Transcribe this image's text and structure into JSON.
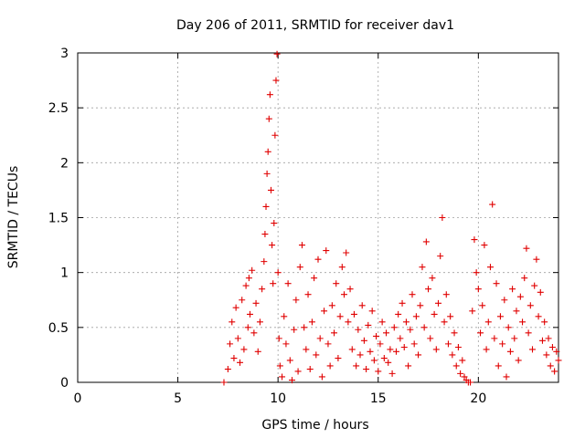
{
  "chart_data": {
    "type": "scatter",
    "title": "Day 206 of 2011, SRMTID for receiver dav1",
    "xlabel": "GPS time / hours",
    "ylabel": "SRMTID / TECUs",
    "xlim": [
      0,
      24
    ],
    "ylim": [
      0,
      3
    ],
    "xticks": [
      0,
      5,
      10,
      15,
      20
    ],
    "xtick_labels": [
      "0",
      "5",
      "10",
      "15",
      "20"
    ],
    "yticks": [
      0,
      0.5,
      1,
      1.5,
      2,
      2.5,
      3
    ],
    "ytick_labels": [
      "0",
      "0.5",
      "1",
      "1.5",
      "2",
      "2.5",
      "3"
    ],
    "grid": true,
    "marker": "plus",
    "color": "#e00000",
    "points": [
      [
        7.3,
        0.0
      ],
      [
        7.5,
        0.12
      ],
      [
        7.6,
        0.35
      ],
      [
        7.7,
        0.55
      ],
      [
        7.8,
        0.22
      ],
      [
        7.9,
        0.68
      ],
      [
        8.0,
        0.4
      ],
      [
        8.1,
        0.18
      ],
      [
        8.2,
        0.75
      ],
      [
        8.3,
        0.3
      ],
      [
        8.4,
        0.88
      ],
      [
        8.5,
        0.5
      ],
      [
        8.55,
        0.95
      ],
      [
        8.6,
        0.62
      ],
      [
        8.7,
        1.02
      ],
      [
        8.8,
        0.45
      ],
      [
        8.9,
        0.72
      ],
      [
        9.0,
        0.28
      ],
      [
        9.1,
        0.55
      ],
      [
        9.2,
        0.85
      ],
      [
        9.3,
        1.1
      ],
      [
        9.35,
        1.35
      ],
      [
        9.4,
        1.6
      ],
      [
        9.45,
        1.9
      ],
      [
        9.5,
        2.1
      ],
      [
        9.55,
        2.4
      ],
      [
        9.6,
        2.62
      ],
      [
        9.65,
        1.75
      ],
      [
        9.7,
        1.25
      ],
      [
        9.75,
        0.9
      ],
      [
        9.8,
        1.45
      ],
      [
        9.85,
        2.25
      ],
      [
        9.9,
        2.75
      ],
      [
        9.95,
        2.99
      ],
      [
        10.0,
        1.0
      ],
      [
        10.05,
        0.4
      ],
      [
        10.1,
        0.15
      ],
      [
        10.2,
        0.05
      ],
      [
        10.3,
        0.6
      ],
      [
        10.4,
        0.35
      ],
      [
        10.5,
        0.9
      ],
      [
        10.6,
        0.2
      ],
      [
        10.7,
        0.02
      ],
      [
        10.8,
        0.48
      ],
      [
        10.9,
        0.75
      ],
      [
        11.0,
        0.1
      ],
      [
        11.1,
        1.05
      ],
      [
        11.2,
        1.25
      ],
      [
        11.3,
        0.5
      ],
      [
        11.4,
        0.3
      ],
      [
        11.5,
        0.8
      ],
      [
        11.6,
        0.12
      ],
      [
        11.7,
        0.55
      ],
      [
        11.8,
        0.95
      ],
      [
        11.9,
        0.25
      ],
      [
        12.0,
        1.12
      ],
      [
        12.1,
        0.4
      ],
      [
        12.2,
        0.05
      ],
      [
        12.3,
        0.65
      ],
      [
        12.4,
        1.2
      ],
      [
        12.5,
        0.35
      ],
      [
        12.6,
        0.15
      ],
      [
        12.7,
        0.7
      ],
      [
        12.8,
        0.45
      ],
      [
        12.9,
        0.9
      ],
      [
        13.0,
        0.22
      ],
      [
        13.1,
        0.6
      ],
      [
        13.2,
        1.05
      ],
      [
        13.3,
        0.8
      ],
      [
        13.4,
        1.18
      ],
      [
        13.5,
        0.55
      ],
      [
        13.6,
        0.85
      ],
      [
        13.7,
        0.3
      ],
      [
        13.8,
        0.62
      ],
      [
        13.9,
        0.15
      ],
      [
        14.0,
        0.48
      ],
      [
        14.1,
        0.25
      ],
      [
        14.2,
        0.7
      ],
      [
        14.3,
        0.38
      ],
      [
        14.4,
        0.12
      ],
      [
        14.5,
        0.52
      ],
      [
        14.6,
        0.28
      ],
      [
        14.7,
        0.65
      ],
      [
        14.8,
        0.2
      ],
      [
        14.9,
        0.42
      ],
      [
        15.0,
        0.1
      ],
      [
        15.1,
        0.35
      ],
      [
        15.2,
        0.55
      ],
      [
        15.3,
        0.22
      ],
      [
        15.4,
        0.45
      ],
      [
        15.5,
        0.18
      ],
      [
        15.6,
        0.3
      ],
      [
        15.7,
        0.08
      ],
      [
        15.8,
        0.5
      ],
      [
        15.9,
        0.28
      ],
      [
        16.0,
        0.62
      ],
      [
        16.1,
        0.4
      ],
      [
        16.2,
        0.72
      ],
      [
        16.3,
        0.32
      ],
      [
        16.4,
        0.55
      ],
      [
        16.5,
        0.15
      ],
      [
        16.6,
        0.48
      ],
      [
        16.7,
        0.8
      ],
      [
        16.8,
        0.35
      ],
      [
        16.9,
        0.6
      ],
      [
        17.0,
        0.25
      ],
      [
        17.1,
        0.7
      ],
      [
        17.2,
        1.05
      ],
      [
        17.3,
        0.5
      ],
      [
        17.4,
        1.28
      ],
      [
        17.5,
        0.85
      ],
      [
        17.6,
        0.4
      ],
      [
        17.7,
        0.95
      ],
      [
        17.8,
        0.62
      ],
      [
        17.9,
        0.3
      ],
      [
        18.0,
        0.72
      ],
      [
        18.1,
        1.15
      ],
      [
        18.2,
        1.5
      ],
      [
        18.3,
        0.55
      ],
      [
        18.4,
        0.8
      ],
      [
        18.5,
        0.35
      ],
      [
        18.6,
        0.6
      ],
      [
        18.7,
        0.25
      ],
      [
        18.8,
        0.45
      ],
      [
        18.9,
        0.15
      ],
      [
        19.0,
        0.32
      ],
      [
        19.1,
        0.08
      ],
      [
        19.2,
        0.2
      ],
      [
        19.3,
        0.05
      ],
      [
        19.4,
        0.02
      ],
      [
        19.5,
        0.0
      ],
      [
        19.6,
        0.0
      ],
      [
        19.7,
        0.65
      ],
      [
        19.8,
        1.3
      ],
      [
        19.9,
        1.0
      ],
      [
        20.0,
        0.85
      ],
      [
        20.1,
        0.45
      ],
      [
        20.2,
        0.7
      ],
      [
        20.3,
        1.25
      ],
      [
        20.4,
        0.3
      ],
      [
        20.5,
        0.55
      ],
      [
        20.6,
        1.05
      ],
      [
        20.7,
        1.62
      ],
      [
        20.8,
        0.4
      ],
      [
        20.9,
        0.9
      ],
      [
        21.0,
        0.15
      ],
      [
        21.1,
        0.6
      ],
      [
        21.2,
        0.35
      ],
      [
        21.3,
        0.75
      ],
      [
        21.4,
        0.05
      ],
      [
        21.5,
        0.5
      ],
      [
        21.6,
        0.28
      ],
      [
        21.7,
        0.85
      ],
      [
        21.8,
        0.4
      ],
      [
        21.9,
        0.65
      ],
      [
        22.0,
        0.2
      ],
      [
        22.1,
        0.78
      ],
      [
        22.2,
        0.55
      ],
      [
        22.3,
        0.95
      ],
      [
        22.4,
        1.22
      ],
      [
        22.5,
        0.45
      ],
      [
        22.6,
        0.7
      ],
      [
        22.7,
        0.3
      ],
      [
        22.8,
        0.88
      ],
      [
        22.9,
        1.12
      ],
      [
        23.0,
        0.6
      ],
      [
        23.1,
        0.82
      ],
      [
        23.2,
        0.38
      ],
      [
        23.3,
        0.55
      ],
      [
        23.4,
        0.25
      ],
      [
        23.5,
        0.4
      ],
      [
        23.6,
        0.15
      ],
      [
        23.7,
        0.32
      ],
      [
        23.8,
        0.1
      ],
      [
        23.9,
        0.28
      ],
      [
        24.0,
        0.2
      ]
    ]
  }
}
